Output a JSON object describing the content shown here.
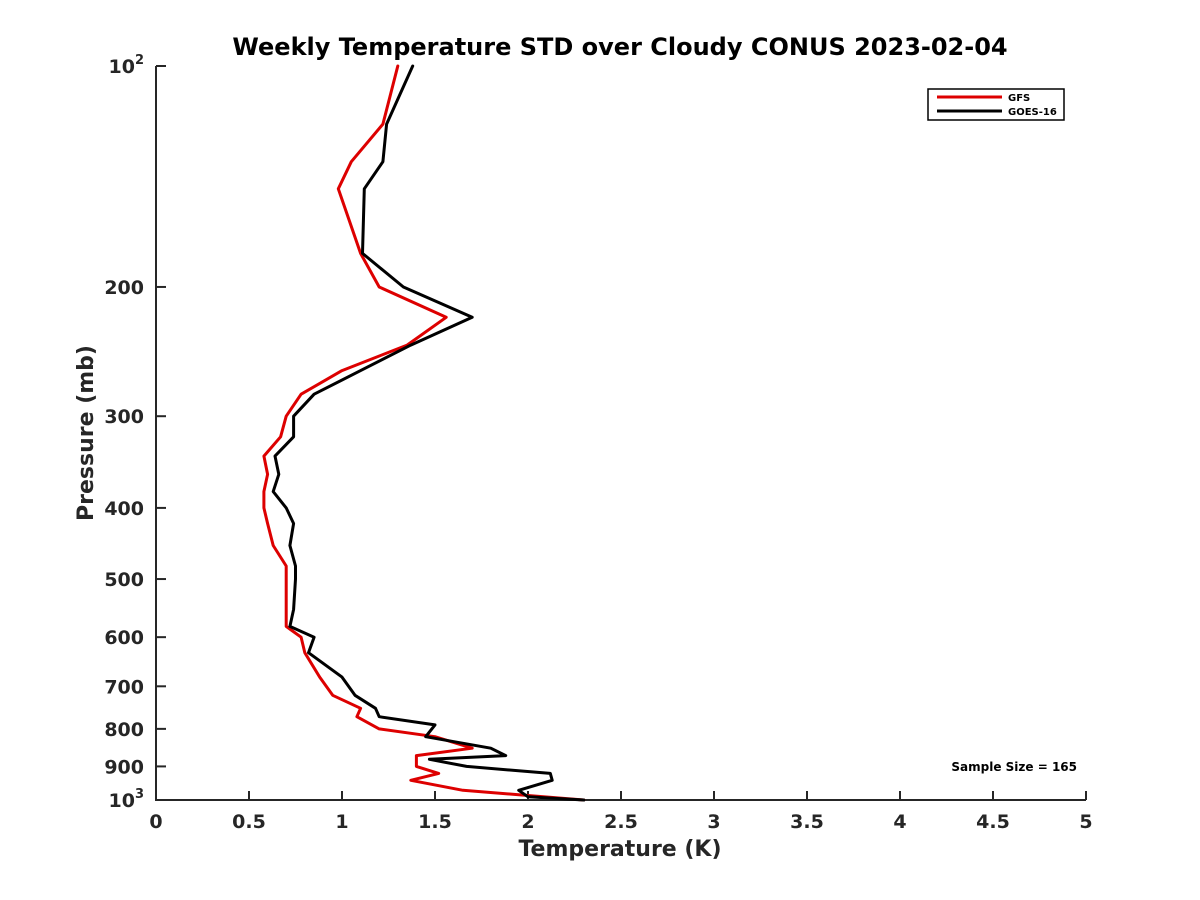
{
  "chart_data": {
    "type": "line",
    "title": "Weekly Temperature STD over Cloudy CONUS 2023-02-04",
    "xlabel": "Temperature (K)",
    "ylabel": "Pressure (mb)",
    "xlim": [
      0,
      5
    ],
    "ylim": [
      100,
      1000
    ],
    "y_scale": "log",
    "y_reversed": true,
    "x_ticks": [
      {
        "value": 0,
        "label": "0"
      },
      {
        "value": 0.5,
        "label": "0.5"
      },
      {
        "value": 1,
        "label": "1"
      },
      {
        "value": 1.5,
        "label": "1.5"
      },
      {
        "value": 2,
        "label": "2"
      },
      {
        "value": 2.5,
        "label": "2.5"
      },
      {
        "value": 3,
        "label": "3"
      },
      {
        "value": 3.5,
        "label": "3.5"
      },
      {
        "value": 4,
        "label": "4"
      },
      {
        "value": 4.5,
        "label": "4.5"
      },
      {
        "value": 5,
        "label": "5"
      }
    ],
    "y_ticks": [
      {
        "value": 100,
        "base": "10",
        "exp": "2"
      },
      {
        "value": 200,
        "base": "200",
        "exp": ""
      },
      {
        "value": 300,
        "base": "300",
        "exp": ""
      },
      {
        "value": 400,
        "base": "400",
        "exp": ""
      },
      {
        "value": 500,
        "base": "500",
        "exp": ""
      },
      {
        "value": 600,
        "base": "600",
        "exp": ""
      },
      {
        "value": 700,
        "base": "700",
        "exp": ""
      },
      {
        "value": 800,
        "base": "800",
        "exp": ""
      },
      {
        "value": 900,
        "base": "900",
        "exp": ""
      },
      {
        "value": 1000,
        "base": "10",
        "exp": "3"
      }
    ],
    "grid": false,
    "legend_position": "top-right",
    "annotation": "Sample Size = 165",
    "series": [
      {
        "name": "GFS",
        "color": "#dd0000",
        "points": [
          [
            1.3,
            100
          ],
          [
            1.22,
            120
          ],
          [
            1.05,
            135
          ],
          [
            0.98,
            147
          ],
          [
            1.1,
            180
          ],
          [
            1.2,
            200
          ],
          [
            1.56,
            220
          ],
          [
            1.35,
            240
          ],
          [
            1.0,
            260
          ],
          [
            0.78,
            280
          ],
          [
            0.7,
            300
          ],
          [
            0.67,
            320
          ],
          [
            0.58,
            340
          ],
          [
            0.6,
            360
          ],
          [
            0.58,
            380
          ],
          [
            0.58,
            400
          ],
          [
            0.6,
            420
          ],
          [
            0.63,
            450
          ],
          [
            0.7,
            480
          ],
          [
            0.7,
            500
          ],
          [
            0.7,
            550
          ],
          [
            0.7,
            580
          ],
          [
            0.78,
            600
          ],
          [
            0.8,
            630
          ],
          [
            0.88,
            680
          ],
          [
            0.95,
            720
          ],
          [
            1.1,
            750
          ],
          [
            1.08,
            770
          ],
          [
            1.2,
            800
          ],
          [
            1.5,
            820
          ],
          [
            1.7,
            850
          ],
          [
            1.4,
            870
          ],
          [
            1.4,
            900
          ],
          [
            1.52,
            920
          ],
          [
            1.37,
            940
          ],
          [
            1.65,
            970
          ],
          [
            2.3,
            1000
          ]
        ]
      },
      {
        "name": "GOES-16",
        "color": "#000000",
        "points": [
          [
            1.38,
            100
          ],
          [
            1.24,
            120
          ],
          [
            1.22,
            135
          ],
          [
            1.12,
            147
          ],
          [
            1.11,
            180
          ],
          [
            1.33,
            200
          ],
          [
            1.7,
            220
          ],
          [
            1.37,
            240
          ],
          [
            1.1,
            260
          ],
          [
            0.85,
            280
          ],
          [
            0.74,
            300
          ],
          [
            0.74,
            320
          ],
          [
            0.64,
            340
          ],
          [
            0.66,
            360
          ],
          [
            0.63,
            380
          ],
          [
            0.7,
            400
          ],
          [
            0.74,
            420
          ],
          [
            0.72,
            450
          ],
          [
            0.75,
            480
          ],
          [
            0.75,
            500
          ],
          [
            0.74,
            550
          ],
          [
            0.72,
            580
          ],
          [
            0.85,
            600
          ],
          [
            0.82,
            630
          ],
          [
            1.0,
            680
          ],
          [
            1.07,
            720
          ],
          [
            1.18,
            750
          ],
          [
            1.2,
            770
          ],
          [
            1.5,
            790
          ],
          [
            1.45,
            820
          ],
          [
            1.8,
            850
          ],
          [
            1.88,
            870
          ],
          [
            1.47,
            880
          ],
          [
            1.67,
            900
          ],
          [
            2.12,
            920
          ],
          [
            2.13,
            940
          ],
          [
            1.95,
            970
          ],
          [
            2.0,
            990
          ],
          [
            2.3,
            1000
          ]
        ]
      }
    ]
  }
}
